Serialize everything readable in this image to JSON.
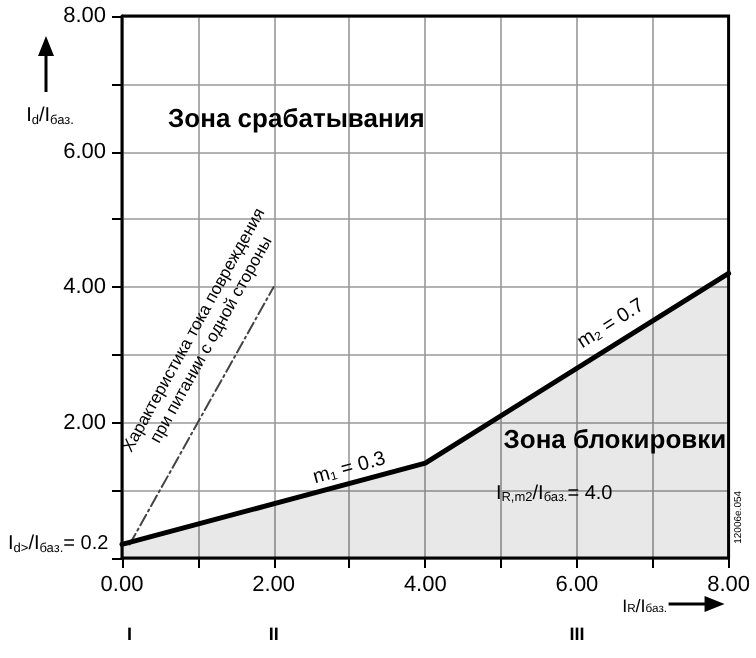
{
  "chart_data": {
    "type": "line",
    "xlabel": "I$_{R}$/I$_{баз.}$",
    "ylabel": "I$_{d}$/I$_{баз.}$",
    "xlim": [
      0,
      8
    ],
    "ylim": [
      0,
      8
    ],
    "xticks": [
      {
        "value": 0,
        "label": "0.00"
      },
      {
        "value": 1,
        "label": null
      },
      {
        "value": 2,
        "label": "2.00"
      },
      {
        "value": 3,
        "label": null
      },
      {
        "value": 4,
        "label": "4.00"
      },
      {
        "value": 5,
        "label": null
      },
      {
        "value": 6,
        "label": "6.00"
      },
      {
        "value": 7,
        "label": null
      },
      {
        "value": 8,
        "label": "8.00"
      }
    ],
    "yticks": [
      {
        "value": 0,
        "label": null
      },
      {
        "value": 1,
        "label": null
      },
      {
        "value": 2,
        "label": "2.00"
      },
      {
        "value": 3,
        "label": null
      },
      {
        "value": 4,
        "label": "4.00"
      },
      {
        "value": 5,
        "label": null
      },
      {
        "value": 6,
        "label": "6.00"
      },
      {
        "value": 7,
        "label": null
      },
      {
        "value": 8,
        "label": "8.00"
      }
    ],
    "grid": true,
    "series": [
      {
        "type": "area",
        "color": "#000000",
        "x": [
          0,
          4,
          8
        ],
        "values": [
          0.2,
          1.4,
          4.2
        ]
      },
      {
        "color": "#444444",
        "line_style": "dashed",
        "x": [
          0.1,
          2
        ],
        "values": [
          0.2,
          4
        ]
      }
    ],
    "annotations": [
      "Зона срабатывания",
      "Зона блокировки",
      "m₁ = 0.3",
      "m₂ = 0.7",
      "I$_{R,m2}$/I$_{баз.}$= 4.0",
      "I$_{d>}$/I$_{баз.}$= 0.2",
      "Характеристика тока повреждения\nпри питании с одной стороны",
      "12006e.054",
      "I",
      "II",
      "III"
    ]
  }
}
